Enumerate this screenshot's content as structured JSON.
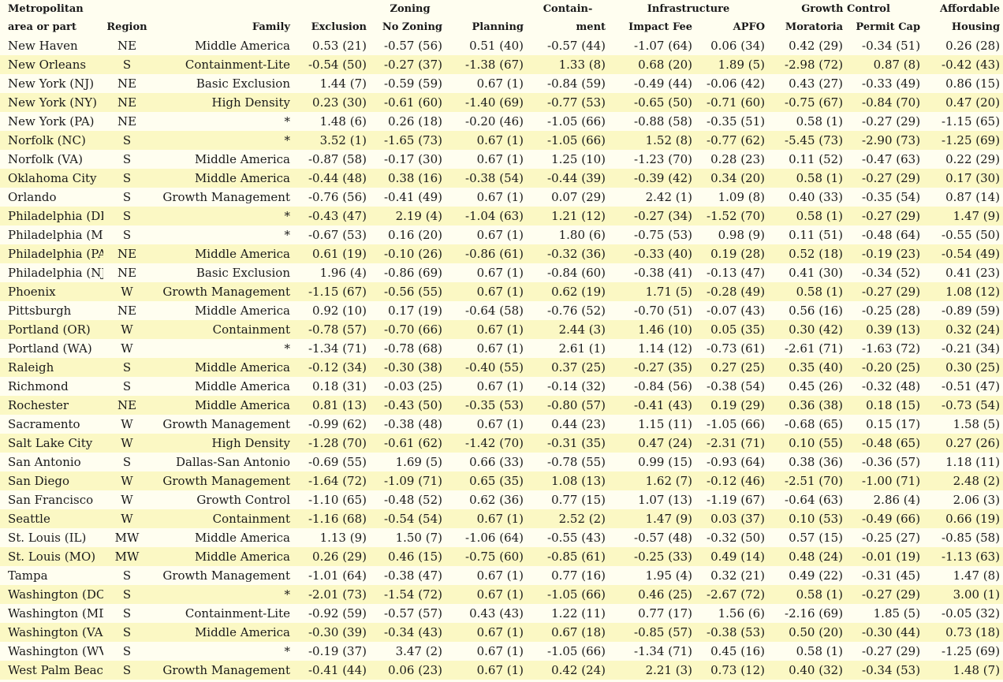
{
  "header": {
    "group_row": {
      "area_top": "Metropolitan",
      "zoning": "Zoning",
      "containment_top": "Contain-",
      "infrastructure": "Infrastructure",
      "growth_control": "Growth Control",
      "affordable_top": "Affordable"
    },
    "column_row": {
      "area": "area or part",
      "region": "Region",
      "family": "Family",
      "exclusion": "Exclusion",
      "no_zoning": "No Zoning",
      "planning": "Planning",
      "containment": "ment",
      "impact_fee": "Impact Fee",
      "apfo": "APFO",
      "moratoria": "Moratoria",
      "permit_cap": "Permit Cap",
      "housing": "Housing"
    }
  },
  "rows": [
    {
      "area": "New Haven",
      "region": "NE",
      "family": "Middle America",
      "excl": "0.53 (21)",
      "nozone": "-0.57 (56)",
      "plan": "0.51 (40)",
      "cont": "-0.57 (44)",
      "impact": "-1.07 (64)",
      "apfo": "0.06 (34)",
      "mora": "0.42 (29)",
      "cap": "-0.34 (51)",
      "afford": "0.26 (28)"
    },
    {
      "area": "New Orleans",
      "region": "S",
      "family": "Containment-Lite",
      "excl": "-0.54 (50)",
      "nozone": "-0.27 (37)",
      "plan": "-1.38 (67)",
      "cont": "1.33 (8)",
      "impact": "0.68 (20)",
      "apfo": "1.89 (5)",
      "mora": "-2.98 (72)",
      "cap": "0.87 (8)",
      "afford": "-0.42 (43)"
    },
    {
      "area": "New York (NJ)",
      "region": "NE",
      "family": "Basic Exclusion",
      "excl": "1.44 (7)",
      "nozone": "-0.59 (59)",
      "plan": "0.67 (1)",
      "cont": "-0.84 (59)",
      "impact": "-0.49 (44)",
      "apfo": "-0.06 (42)",
      "mora": "0.43 (27)",
      "cap": "-0.33 (49)",
      "afford": "0.86 (15)"
    },
    {
      "area": "New York (NY)",
      "region": "NE",
      "family": "High Density",
      "excl": "0.23 (30)",
      "nozone": "-0.61 (60)",
      "plan": "-1.40 (69)",
      "cont": "-0.77 (53)",
      "impact": "-0.65 (50)",
      "apfo": "-0.71 (60)",
      "mora": "-0.75 (67)",
      "cap": "-0.84 (70)",
      "afford": "0.47 (20)"
    },
    {
      "area": "New York (PA)",
      "region": "NE",
      "family": "*",
      "excl": "1.48 (6)",
      "nozone": "0.26 (18)",
      "plan": "-0.20 (46)",
      "cont": "-1.05 (66)",
      "impact": "-0.88 (58)",
      "apfo": "-0.35 (51)",
      "mora": "0.58 (1)",
      "cap": "-0.27 (29)",
      "afford": "-1.15 (65)"
    },
    {
      "area": "Norfolk (NC)",
      "region": "S",
      "family": "*",
      "excl": "3.52 (1)",
      "nozone": "-1.65 (73)",
      "plan": "0.67 (1)",
      "cont": "-1.05 (66)",
      "impact": "1.52 (8)",
      "apfo": "-0.77 (62)",
      "mora": "-5.45 (73)",
      "cap": "-2.90 (73)",
      "afford": "-1.25 (69)"
    },
    {
      "area": "Norfolk (VA)",
      "region": "S",
      "family": "Middle America",
      "excl": "-0.87 (58)",
      "nozone": "-0.17 (30)",
      "plan": "0.67 (1)",
      "cont": "1.25 (10)",
      "impact": "-1.23 (70)",
      "apfo": "0.28 (23)",
      "mora": "0.11 (52)",
      "cap": "-0.47 (63)",
      "afford": "0.22 (29)"
    },
    {
      "area": "Oklahoma City",
      "region": "S",
      "family": "Middle America",
      "excl": "-0.44 (48)",
      "nozone": "0.38 (16)",
      "plan": "-0.38 (54)",
      "cont": "-0.44 (39)",
      "impact": "-0.39 (42)",
      "apfo": "0.34 (20)",
      "mora": "0.58 (1)",
      "cap": "-0.27 (29)",
      "afford": "0.17 (30)"
    },
    {
      "area": "Orlando",
      "region": "S",
      "family": "Growth Management",
      "excl": "-0.76 (56)",
      "nozone": "-0.41 (49)",
      "plan": "0.67 (1)",
      "cont": "0.07 (29)",
      "impact": "2.42 (1)",
      "apfo": "1.09 (8)",
      "mora": "0.40 (33)",
      "cap": "-0.35 (54)",
      "afford": "0.87 (14)"
    },
    {
      "area": "Philadelphia (DE)",
      "region": "S",
      "family": "*",
      "excl": "-0.43 (47)",
      "nozone": "2.19 (4)",
      "plan": "-1.04 (63)",
      "cont": "1.21 (12)",
      "impact": "-0.27 (34)",
      "apfo": "-1.52 (70)",
      "mora": "0.58 (1)",
      "cap": "-0.27 (29)",
      "afford": "1.47 (9)"
    },
    {
      "area": "Philadelphia (MD)",
      "region": "S",
      "family": "*",
      "excl": "-0.67 (53)",
      "nozone": "0.16 (20)",
      "plan": "0.67 (1)",
      "cont": "1.80 (6)",
      "impact": "-0.75 (53)",
      "apfo": "0.98 (9)",
      "mora": "0.11 (51)",
      "cap": "-0.48 (64)",
      "afford": "-0.55 (50)"
    },
    {
      "area": "Philadelphia (PA)",
      "region": "NE",
      "family": "Middle America",
      "excl": "0.61 (19)",
      "nozone": "-0.10 (26)",
      "plan": "-0.86 (61)",
      "cont": "-0.32 (36)",
      "impact": "-0.33 (40)",
      "apfo": "0.19 (28)",
      "mora": "0.52 (18)",
      "cap": "-0.19 (23)",
      "afford": "-0.54 (49)"
    },
    {
      "area": "Philadelphia (NJ)",
      "region": "NE",
      "family": "Basic Exclusion",
      "excl": "1.96 (4)",
      "nozone": "-0.86 (69)",
      "plan": "0.67 (1)",
      "cont": "-0.84 (60)",
      "impact": "-0.38 (41)",
      "apfo": "-0.13 (47)",
      "mora": "0.41 (30)",
      "cap": "-0.34 (52)",
      "afford": "0.41 (23)"
    },
    {
      "area": "Phoenix",
      "region": "W",
      "family": "Growth Management",
      "excl": "-1.15 (67)",
      "nozone": "-0.56 (55)",
      "plan": "0.67 (1)",
      "cont": "0.62 (19)",
      "impact": "1.71 (5)",
      "apfo": "-0.28 (49)",
      "mora": "0.58 (1)",
      "cap": "-0.27 (29)",
      "afford": "1.08 (12)"
    },
    {
      "area": "Pittsburgh",
      "region": "NE",
      "family": "Middle America",
      "excl": "0.92 (10)",
      "nozone": "0.17 (19)",
      "plan": "-0.64 (58)",
      "cont": "-0.76 (52)",
      "impact": "-0.70 (51)",
      "apfo": "-0.07 (43)",
      "mora": "0.56 (16)",
      "cap": "-0.25 (28)",
      "afford": "-0.89 (59)"
    },
    {
      "area": "Portland (OR)",
      "region": "W",
      "family": "Containment",
      "excl": "-0.78 (57)",
      "nozone": "-0.70 (66)",
      "plan": "0.67 (1)",
      "cont": "2.44 (3)",
      "impact": "1.46 (10)",
      "apfo": "0.05 (35)",
      "mora": "0.30 (42)",
      "cap": "0.39 (13)",
      "afford": "0.32 (24)"
    },
    {
      "area": "Portland (WA)",
      "region": "W",
      "family": "*",
      "excl": "-1.34 (71)",
      "nozone": "-0.78 (68)",
      "plan": "0.67 (1)",
      "cont": "2.61 (1)",
      "impact": "1.14 (12)",
      "apfo": "-0.73 (61)",
      "mora": "-2.61 (71)",
      "cap": "-1.63 (72)",
      "afford": "-0.21 (34)"
    },
    {
      "area": "Raleigh",
      "region": "S",
      "family": "Middle America",
      "excl": "-0.12 (34)",
      "nozone": "-0.30 (38)",
      "plan": "-0.40 (55)",
      "cont": "0.37 (25)",
      "impact": "-0.27 (35)",
      "apfo": "0.27 (25)",
      "mora": "0.35 (40)",
      "cap": "-0.20 (25)",
      "afford": "0.30 (25)"
    },
    {
      "area": "Richmond",
      "region": "S",
      "family": "Middle America",
      "excl": "0.18 (31)",
      "nozone": "-0.03 (25)",
      "plan": "0.67 (1)",
      "cont": "-0.14 (32)",
      "impact": "-0.84 (56)",
      "apfo": "-0.38 (54)",
      "mora": "0.45 (26)",
      "cap": "-0.32 (48)",
      "afford": "-0.51 (47)"
    },
    {
      "area": "Rochester",
      "region": "NE",
      "family": "Middle America",
      "excl": "0.81 (13)",
      "nozone": "-0.43 (50)",
      "plan": "-0.35 (53)",
      "cont": "-0.80 (57)",
      "impact": "-0.41 (43)",
      "apfo": "0.19 (29)",
      "mora": "0.36 (38)",
      "cap": "0.18 (15)",
      "afford": "-0.73 (54)"
    },
    {
      "area": "Sacramento",
      "region": "W",
      "family": "Growth Management",
      "excl": "-0.99 (62)",
      "nozone": "-0.38 (48)",
      "plan": "0.67 (1)",
      "cont": "0.44 (23)",
      "impact": "1.15 (11)",
      "apfo": "-1.05 (66)",
      "mora": "-0.68 (65)",
      "cap": "0.15 (17)",
      "afford": "1.58 (5)"
    },
    {
      "area": "Salt Lake City",
      "region": "W",
      "family": "High Density",
      "excl": "-1.28 (70)",
      "nozone": "-0.61 (62)",
      "plan": "-1.42 (70)",
      "cont": "-0.31 (35)",
      "impact": "0.47 (24)",
      "apfo": "-2.31 (71)",
      "mora": "0.10 (55)",
      "cap": "-0.48 (65)",
      "afford": "0.27 (26)"
    },
    {
      "area": "San Antonio",
      "region": "S",
      "family": "Dallas-San Antonio",
      "excl": "-0.69 (55)",
      "nozone": "1.69 (5)",
      "plan": "0.66 (33)",
      "cont": "-0.78 (55)",
      "impact": "0.99 (15)",
      "apfo": "-0.93 (64)",
      "mora": "0.38 (36)",
      "cap": "-0.36 (57)",
      "afford": "1.18 (11)"
    },
    {
      "area": "San Diego",
      "region": "W",
      "family": "Growth Management",
      "excl": "-1.64 (72)",
      "nozone": "-1.09 (71)",
      "plan": "0.65 (35)",
      "cont": "1.08 (13)",
      "impact": "1.62 (7)",
      "apfo": "-0.12 (46)",
      "mora": "-2.51 (70)",
      "cap": "-1.00 (71)",
      "afford": "2.48 (2)"
    },
    {
      "area": "San Francisco",
      "region": "W",
      "family": "Growth Control",
      "excl": "-1.10 (65)",
      "nozone": "-0.48 (52)",
      "plan": "0.62 (36)",
      "cont": "0.77 (15)",
      "impact": "1.07 (13)",
      "apfo": "-1.19 (67)",
      "mora": "-0.64 (63)",
      "cap": "2.86 (4)",
      "afford": "2.06 (3)"
    },
    {
      "area": "Seattle",
      "region": "W",
      "family": "Containment",
      "excl": "-1.16 (68)",
      "nozone": "-0.54 (54)",
      "plan": "0.67 (1)",
      "cont": "2.52 (2)",
      "impact": "1.47 (9)",
      "apfo": "0.03 (37)",
      "mora": "0.10 (53)",
      "cap": "-0.49 (66)",
      "afford": "0.66 (19)"
    },
    {
      "area": "St. Louis (IL)",
      "region": "MW",
      "family": "Middle America",
      "excl": "1.13 (9)",
      "nozone": "1.50 (7)",
      "plan": "-1.06 (64)",
      "cont": "-0.55 (43)",
      "impact": "-0.57 (48)",
      "apfo": "-0.32 (50)",
      "mora": "0.57 (15)",
      "cap": "-0.25 (27)",
      "afford": "-0.85 (58)"
    },
    {
      "area": "St. Louis (MO)",
      "region": "MW",
      "family": "Middle America",
      "excl": "0.26 (29)",
      "nozone": "0.46 (15)",
      "plan": "-0.75 (60)",
      "cont": "-0.85 (61)",
      "impact": "-0.25 (33)",
      "apfo": "0.49 (14)",
      "mora": "0.48 (24)",
      "cap": "-0.01 (19)",
      "afford": "-1.13 (63)"
    },
    {
      "area": "Tampa",
      "region": "S",
      "family": "Growth Management",
      "excl": "-1.01 (64)",
      "nozone": "-0.38 (47)",
      "plan": "0.67 (1)",
      "cont": "0.77 (16)",
      "impact": "1.95 (4)",
      "apfo": "0.32 (21)",
      "mora": "0.49 (22)",
      "cap": "-0.31 (45)",
      "afford": "1.47 (8)"
    },
    {
      "area": "Washington (DC)",
      "region": "S",
      "family": "*",
      "excl": "-2.01 (73)",
      "nozone": "-1.54 (72)",
      "plan": "0.67 (1)",
      "cont": "-1.05 (66)",
      "impact": "0.46 (25)",
      "apfo": "-2.67 (72)",
      "mora": "0.58 (1)",
      "cap": "-0.27 (29)",
      "afford": "3.00 (1)"
    },
    {
      "area": "Washington (MD)",
      "region": "S",
      "family": "Containment-Lite",
      "excl": "-0.92 (59)",
      "nozone": "-0.57 (57)",
      "plan": "0.43 (43)",
      "cont": "1.22 (11)",
      "impact": "0.77 (17)",
      "apfo": "1.56 (6)",
      "mora": "-2.16 (69)",
      "cap": "1.85 (5)",
      "afford": "-0.05 (32)"
    },
    {
      "area": "Washington (VA)",
      "region": "S",
      "family": "Middle America",
      "excl": "-0.30 (39)",
      "nozone": "-0.34 (43)",
      "plan": "0.67 (1)",
      "cont": "0.67 (18)",
      "impact": "-0.85 (57)",
      "apfo": "-0.38 (53)",
      "mora": "0.50 (20)",
      "cap": "-0.30 (44)",
      "afford": "0.73 (18)"
    },
    {
      "area": "Washington (WV)",
      "region": "S",
      "family": "*",
      "excl": "-0.19 (37)",
      "nozone": "3.47 (2)",
      "plan": "0.67 (1)",
      "cont": "-1.05 (66)",
      "impact": "-1.34 (71)",
      "apfo": "0.45 (16)",
      "mora": "0.58 (1)",
      "cap": "-0.27 (29)",
      "afford": "-1.25 (69)"
    },
    {
      "area": "West Palm Beach",
      "region": "S",
      "family": "Growth Management",
      "excl": "-0.41 (44)",
      "nozone": "0.06 (23)",
      "plan": "0.67 (1)",
      "cont": "0.42 (24)",
      "impact": "2.21 (3)",
      "apfo": "0.73 (12)",
      "mora": "0.40 (32)",
      "cap": "-0.34 (53)",
      "afford": "1.48 (7)"
    }
  ]
}
